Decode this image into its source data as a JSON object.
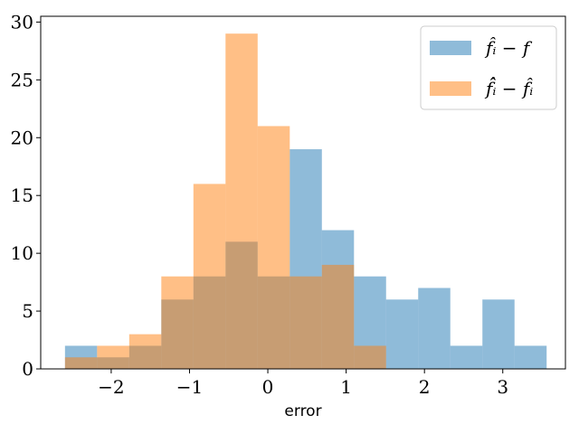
{
  "chart_data": {
    "type": "bar",
    "histogram": true,
    "title": "",
    "xlabel": "error",
    "ylabel": "",
    "xlim": [
      -2.9,
      3.8
    ],
    "ylim": [
      0,
      30.5
    ],
    "xticks": [
      -2,
      -1,
      0,
      1,
      2,
      3
    ],
    "xtick_labels": [
      "−2",
      "−1",
      "0",
      "1",
      "2",
      "3"
    ],
    "yticks": [
      0,
      5,
      10,
      15,
      20,
      25,
      30
    ],
    "ytick_labels": [
      "0",
      "5",
      "10",
      "15",
      "20",
      "25",
      "30"
    ],
    "grid": false,
    "legend_position": "top-right",
    "series": [
      {
        "name": "f̂ᵢ − f",
        "color": "#1f77b4",
        "alpha": 0.5,
        "bin_edges": [
          -2.59,
          -2.18,
          -1.77,
          -1.36,
          -0.95,
          -0.54,
          -0.13,
          0.28,
          0.69,
          1.1,
          1.51,
          1.92,
          2.33,
          2.74,
          3.15,
          3.56
        ],
        "counts": [
          2,
          1,
          2,
          6,
          8,
          11,
          8,
          19,
          12,
          8,
          6,
          7,
          2,
          6,
          2
        ]
      },
      {
        "name": "f̂̂ᵢ − f̂ᵢ",
        "color": "#ff7f0e",
        "alpha": 0.5,
        "bin_edges": [
          -2.59,
          -2.18,
          -1.77,
          -1.36,
          -0.95,
          -0.54,
          -0.13,
          0.28,
          0.69,
          1.1,
          1.51
        ],
        "counts": [
          1,
          2,
          3,
          8,
          16,
          29,
          21,
          8,
          9,
          2
        ]
      }
    ]
  }
}
